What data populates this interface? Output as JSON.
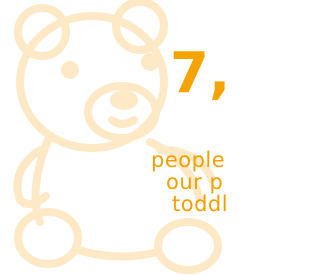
{
  "headline": {
    "number": "7,"
  },
  "caption": {
    "lines": [
      "people",
      "our p",
      "toddl"
    ]
  }
}
